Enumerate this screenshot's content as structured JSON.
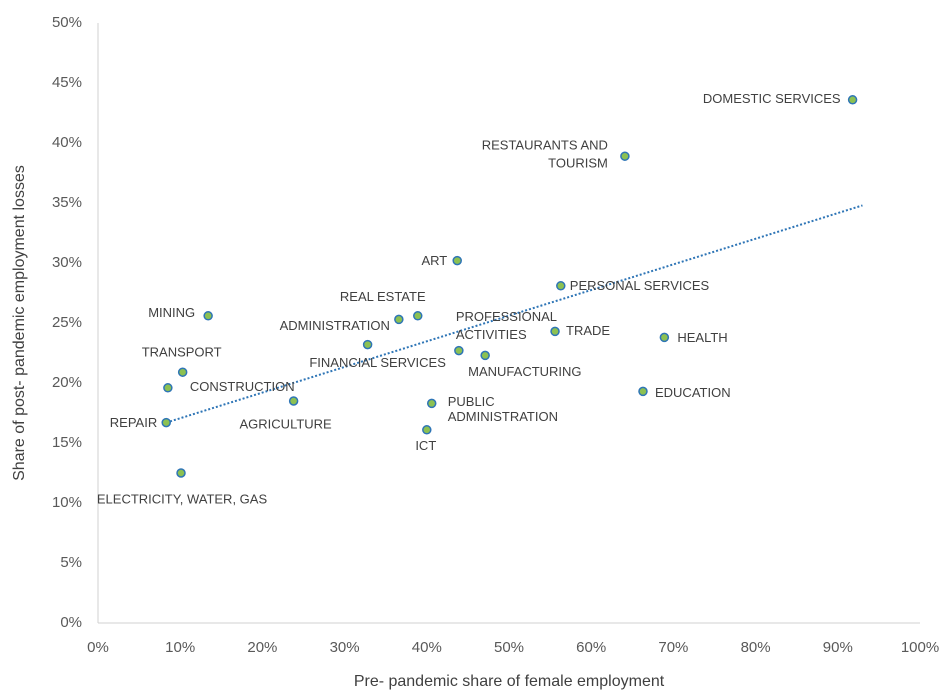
{
  "chart_data": {
    "type": "scatter",
    "x_label": "Pre- pandemic share of female employment",
    "y_label": "Share of post- pandemic employment losses",
    "labels": [
      [
        "DOMESTIC SERVICES"
      ],
      [
        "RESTAURANTS AND",
        "TOURISM"
      ],
      [
        "ART"
      ],
      [
        "PERSONAL SERVICES"
      ],
      [
        "REAL ESTATE"
      ],
      [
        "ADMINISTRATION"
      ],
      [
        "MINING"
      ],
      [
        "PROFESSIONAL",
        "ACTIVITIES"
      ],
      [
        "TRADE"
      ],
      [
        "HEALTH"
      ],
      [
        "FINANCIAL SERVICES"
      ],
      [
        "MANUFACTURING"
      ],
      [
        "TRANSPORT"
      ],
      [
        "CONSTRUCTION"
      ],
      [
        "AGRICULTURE"
      ],
      [
        "PUBLIC",
        "ADMINISTRATION"
      ],
      [
        "EDUCATION"
      ],
      [
        "REPAIR"
      ],
      [
        "ICT"
      ],
      [
        "ELECTRICITY,  WATER, GAS"
      ]
    ],
    "x": [
      91.8,
      64.1,
      43.7,
      56.3,
      38.9,
      36.6,
      13.4,
      43.9,
      55.6,
      68.9,
      32.8,
      47.1,
      10.3,
      8.5,
      23.8,
      40.6,
      66.3,
      8.3,
      40.0,
      10.1
    ],
    "y": [
      43.6,
      38.9,
      30.2,
      28.1,
      25.6,
      25.3,
      25.6,
      22.7,
      24.3,
      23.8,
      23.2,
      22.3,
      20.9,
      19.6,
      18.5,
      18.3,
      19.3,
      16.7,
      16.1,
      12.5
    ],
    "color": "#8cc152",
    "edge_color": "#2e75b6",
    "trendline": {
      "x": [
        8.3,
        93.0
      ],
      "y": [
        16.7,
        34.8
      ],
      "color": "#2e75b6"
    },
    "xlim": [
      0,
      100
    ],
    "xticks": [
      {
        "value": 0,
        "label": "0%"
      },
      {
        "value": 10,
        "label": "10%"
      },
      {
        "value": 20,
        "label": "20%"
      },
      {
        "value": 30,
        "label": "30%"
      },
      {
        "value": 40,
        "label": "40%"
      },
      {
        "value": 50,
        "label": "50%"
      },
      {
        "value": 60,
        "label": "60%"
      },
      {
        "value": 70,
        "label": "70%"
      },
      {
        "value": 80,
        "label": "80%"
      },
      {
        "value": 90,
        "label": "90%"
      },
      {
        "value": 100,
        "label": "100%"
      }
    ],
    "ylim": [
      0,
      50
    ],
    "yticks": [
      {
        "value": 0,
        "label": "0%"
      },
      {
        "value": 5,
        "label": "5%"
      },
      {
        "value": 10,
        "label": "10%"
      },
      {
        "value": 15,
        "label": "15%"
      },
      {
        "value": 20,
        "label": "20%"
      },
      {
        "value": 25,
        "label": "25%"
      },
      {
        "value": 30,
        "label": "30%"
      },
      {
        "value": 35,
        "label": "35%"
      },
      {
        "value": 40,
        "label": "40%"
      },
      {
        "value": 45,
        "label": "45%"
      },
      {
        "value": 50,
        "label": "50%"
      }
    ],
    "grid": false
  }
}
